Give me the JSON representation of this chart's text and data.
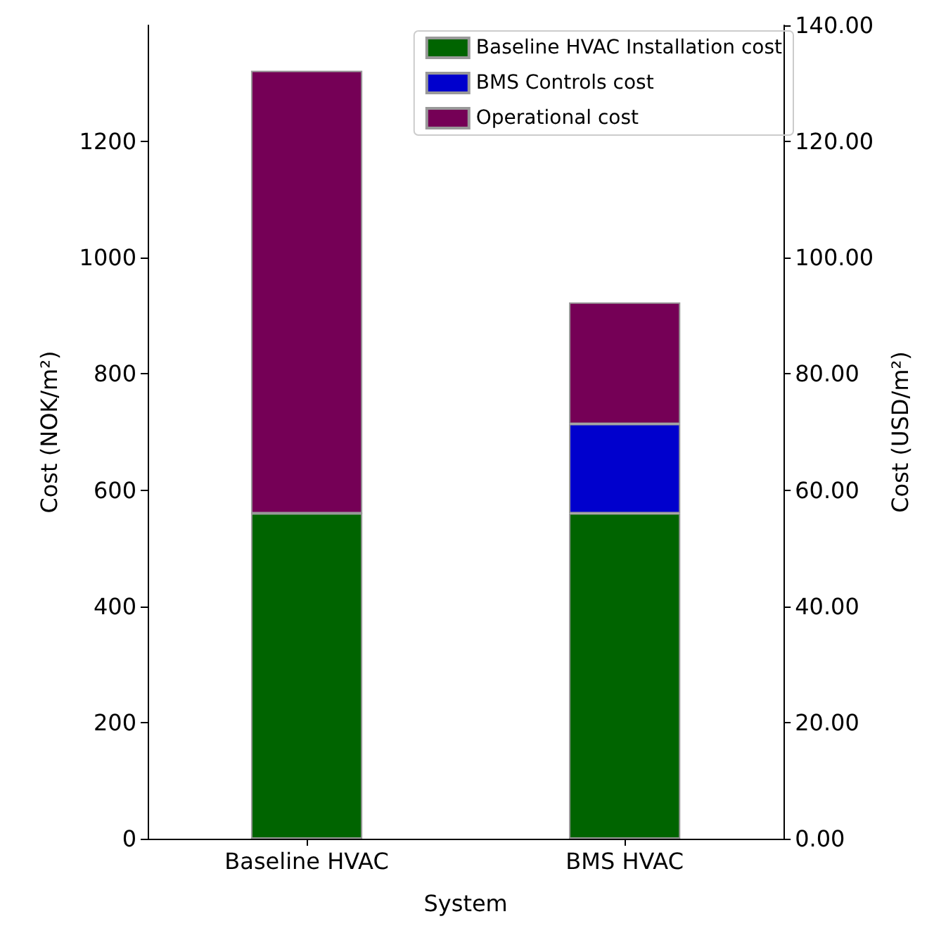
{
  "chart_data": {
    "type": "bar",
    "stacked": true,
    "xlabel": "System",
    "ylabel": "Cost (NOK/m²)",
    "y2label": "Cost (USD/m²)",
    "categories": [
      "Baseline HVAC",
      "BMS HVAC"
    ],
    "series": [
      {
        "name": "Baseline HVAC Installation cost",
        "color": "#006400",
        "values": [
          560,
          560
        ]
      },
      {
        "name": "BMS Controls cost",
        "color": "#0000cd",
        "values": [
          0,
          154
        ]
      },
      {
        "name": "Operational cost",
        "color": "#750056",
        "values": [
          762,
          209
        ]
      }
    ],
    "ylim": [
      0,
      1400
    ],
    "yticks": [
      0,
      200,
      400,
      600,
      800,
      1000,
      1200
    ],
    "y2lim": [
      0,
      140
    ],
    "y2ticks": [
      {
        "value": 0,
        "label": "0.00"
      },
      {
        "value": 20,
        "label": "20.00"
      },
      {
        "value": 40,
        "label": "40.00"
      },
      {
        "value": 60,
        "label": "60.00"
      },
      {
        "value": 80,
        "label": "80.00"
      },
      {
        "value": 100,
        "label": "100.00"
      },
      {
        "value": 120,
        "label": "120.00"
      },
      {
        "value": 140,
        "label": "140.00"
      }
    ],
    "legend": "top right",
    "grid": false
  }
}
